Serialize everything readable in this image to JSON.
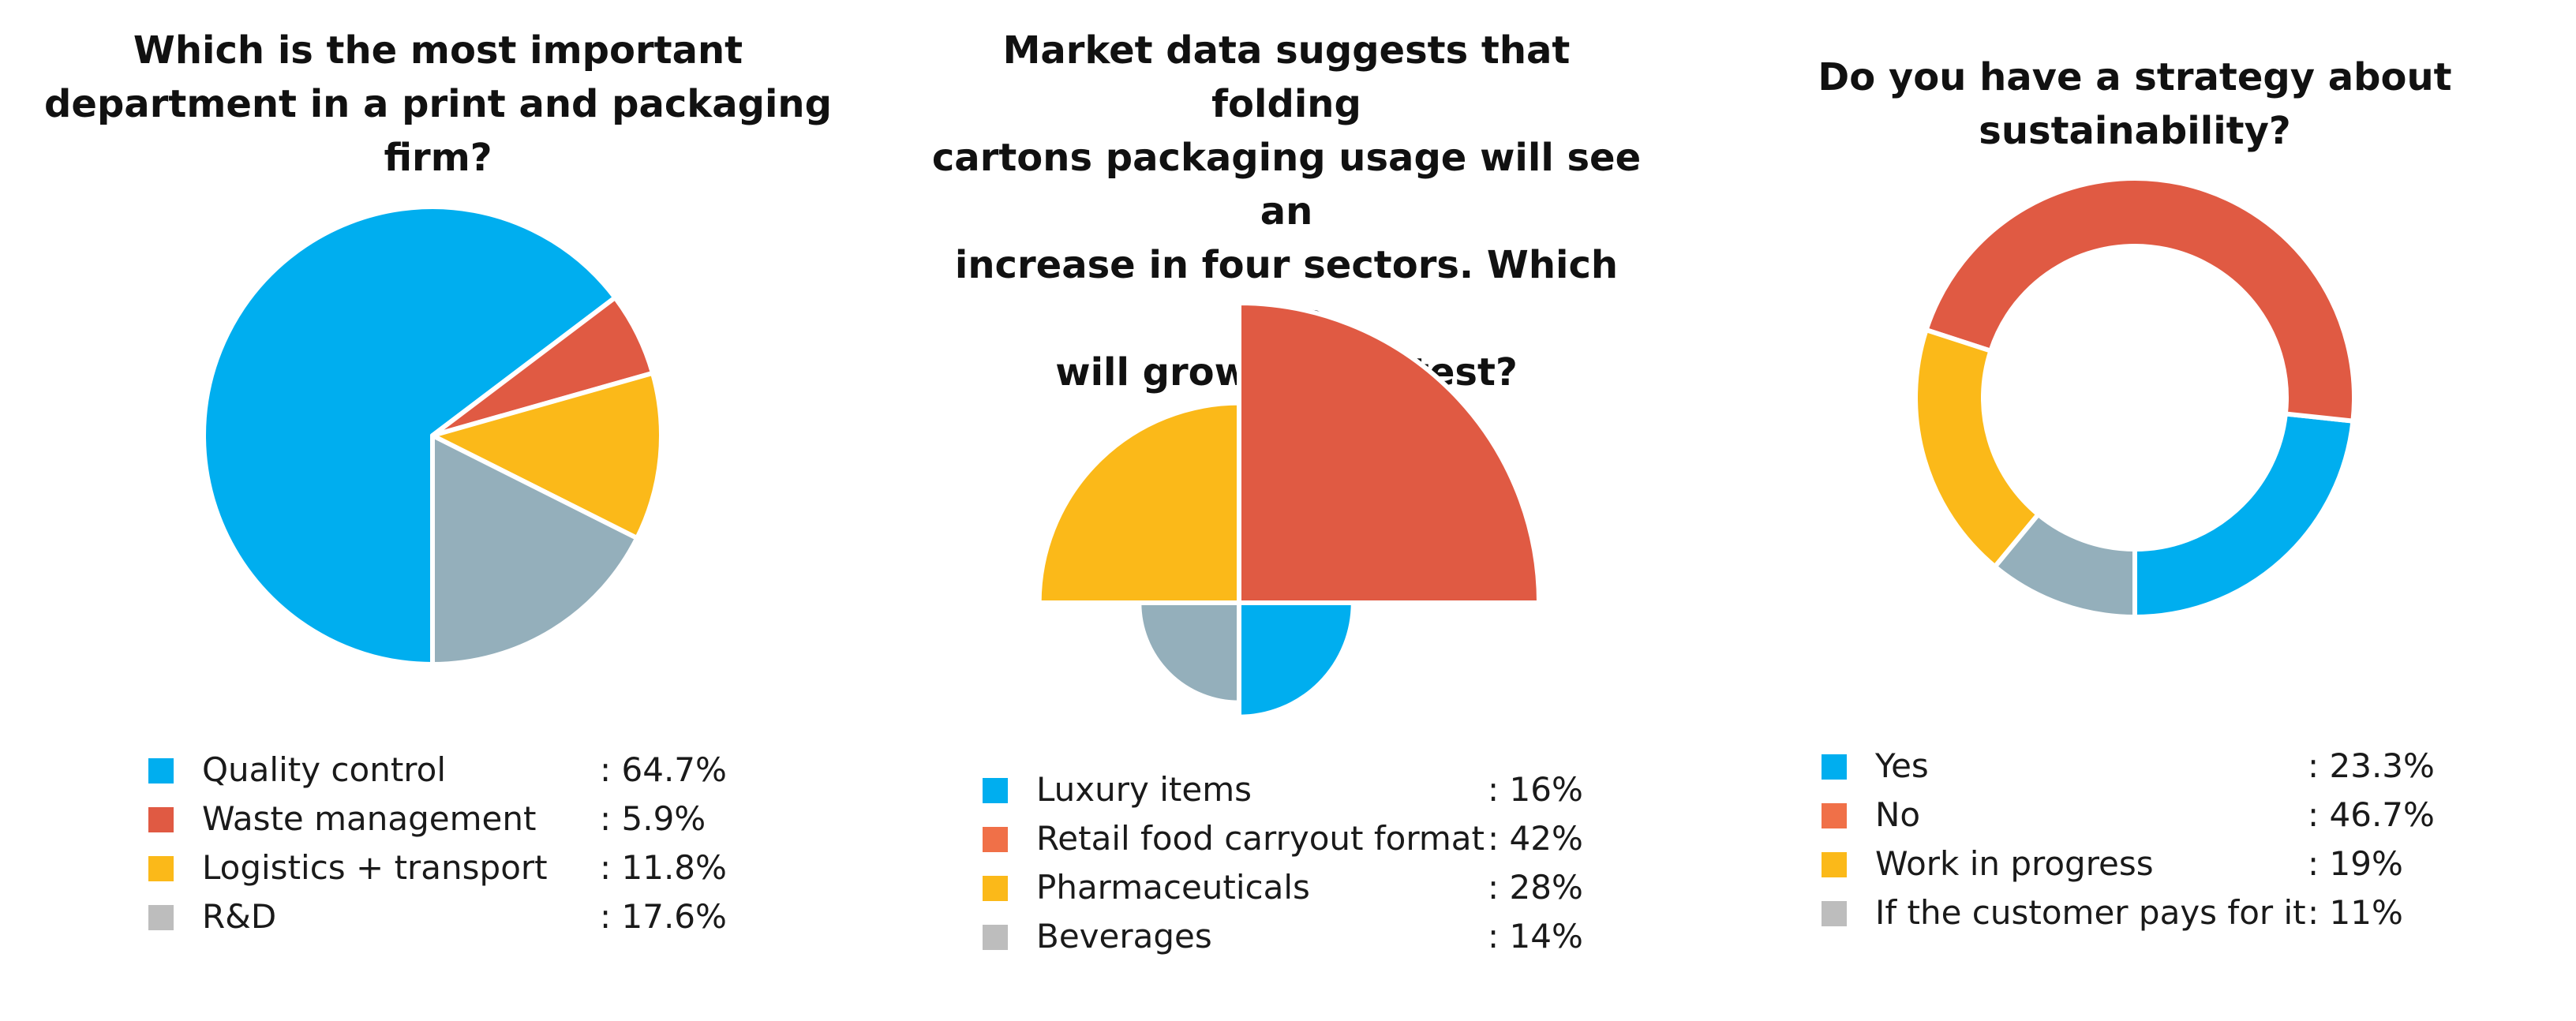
{
  "chart_data": [
    {
      "type": "pie",
      "title": "Which is the most important department in a print and packaging firm?",
      "title_lines": [
        "Which is the most important",
        "department in a print and packaging firm?"
      ],
      "series": [
        {
          "name": "Quality control",
          "value": 64.7,
          "label": ": 64.7%",
          "color": "#00AEEF"
        },
        {
          "name": "Waste management",
          "value": 5.9,
          "label": ": 5.9%",
          "color": "#E05A43"
        },
        {
          "name": "Logistics + transport",
          "value": 11.8,
          "label": ": 11.8%",
          "color": "#FBB919"
        },
        {
          "name": "R&D",
          "value": 17.6,
          "label": ": 17.6%",
          "color": "#94AFBB"
        }
      ],
      "legend_colors": [
        "#00AEEF",
        "#E05A43",
        "#FBB919",
        "#BDBDBD"
      ],
      "legend": "bottom"
    },
    {
      "type": "pie",
      "variant": "polar-area",
      "title": "Market data suggests that folding cartons packaging usage will see an increase in four sectors. Which one will grow the fastest?",
      "title_lines": [
        "Market data suggests that folding",
        "cartons packaging usage will see an",
        "increase in four sectors. Which one",
        "will grow the fastest?"
      ],
      "series": [
        {
          "name": "Luxury items",
          "value": 16,
          "label": ": 16%",
          "color": "#00AEEF"
        },
        {
          "name": "Retail food carryout format",
          "value": 42,
          "label": ": 42%",
          "color": "#E05A43"
        },
        {
          "name": "Pharmaceuticals",
          "value": 28,
          "label": ": 28%",
          "color": "#FBB919"
        },
        {
          "name": "Beverages",
          "value": 14,
          "label": ": 14%",
          "color": "#94AFBB"
        }
      ],
      "legend_colors": [
        "#00AEEF",
        "#F07048",
        "#FBB919",
        "#BDBDBD"
      ],
      "legend": "bottom"
    },
    {
      "type": "pie",
      "variant": "donut",
      "title": "Do you have a strategy about sustainability?",
      "title_lines": [
        "Do you have a strategy about sustainability?"
      ],
      "series": [
        {
          "name": "Yes",
          "value": 23.3,
          "label": ": 23.3%",
          "color": "#00AEEF"
        },
        {
          "name": "No",
          "value": 46.7,
          "label": ": 46.7%",
          "color": "#E05A43"
        },
        {
          "name": "Work in progress",
          "value": 19,
          "label": ": 19%",
          "color": "#FBB919"
        },
        {
          "name": "If the customer pays for it",
          "value": 11,
          "label": ": 11%",
          "color": "#94AFBB"
        }
      ],
      "legend_colors": [
        "#00AEEF",
        "#F07048",
        "#FBB919",
        "#BDBDBD"
      ],
      "legend": "bottom"
    }
  ]
}
